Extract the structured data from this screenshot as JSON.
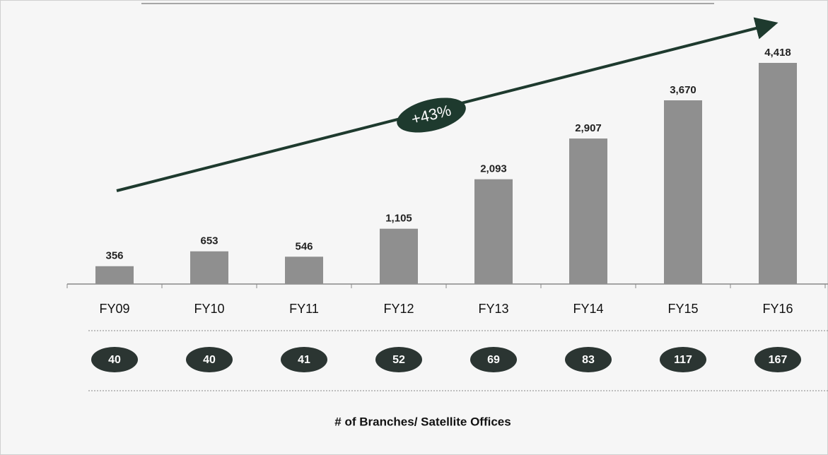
{
  "chart_data": {
    "type": "bar",
    "categories": [
      "FY09",
      "FY10",
      "FY11",
      "FY12",
      "FY13",
      "FY14",
      "FY15",
      "FY16"
    ],
    "values": [
      356,
      653,
      546,
      1105,
      2093,
      2907,
      3670,
      4418
    ],
    "value_labels": [
      "356",
      "653",
      "546",
      "1,105",
      "2,093",
      "2,907",
      "3,670",
      "4,418"
    ],
    "color": "#8f8f8f",
    "annotation": "+43%",
    "branches": [
      40,
      40,
      41,
      52,
      69,
      83,
      117,
      167
    ],
    "branches_label": "# of Branches/ Satellite Offices"
  }
}
